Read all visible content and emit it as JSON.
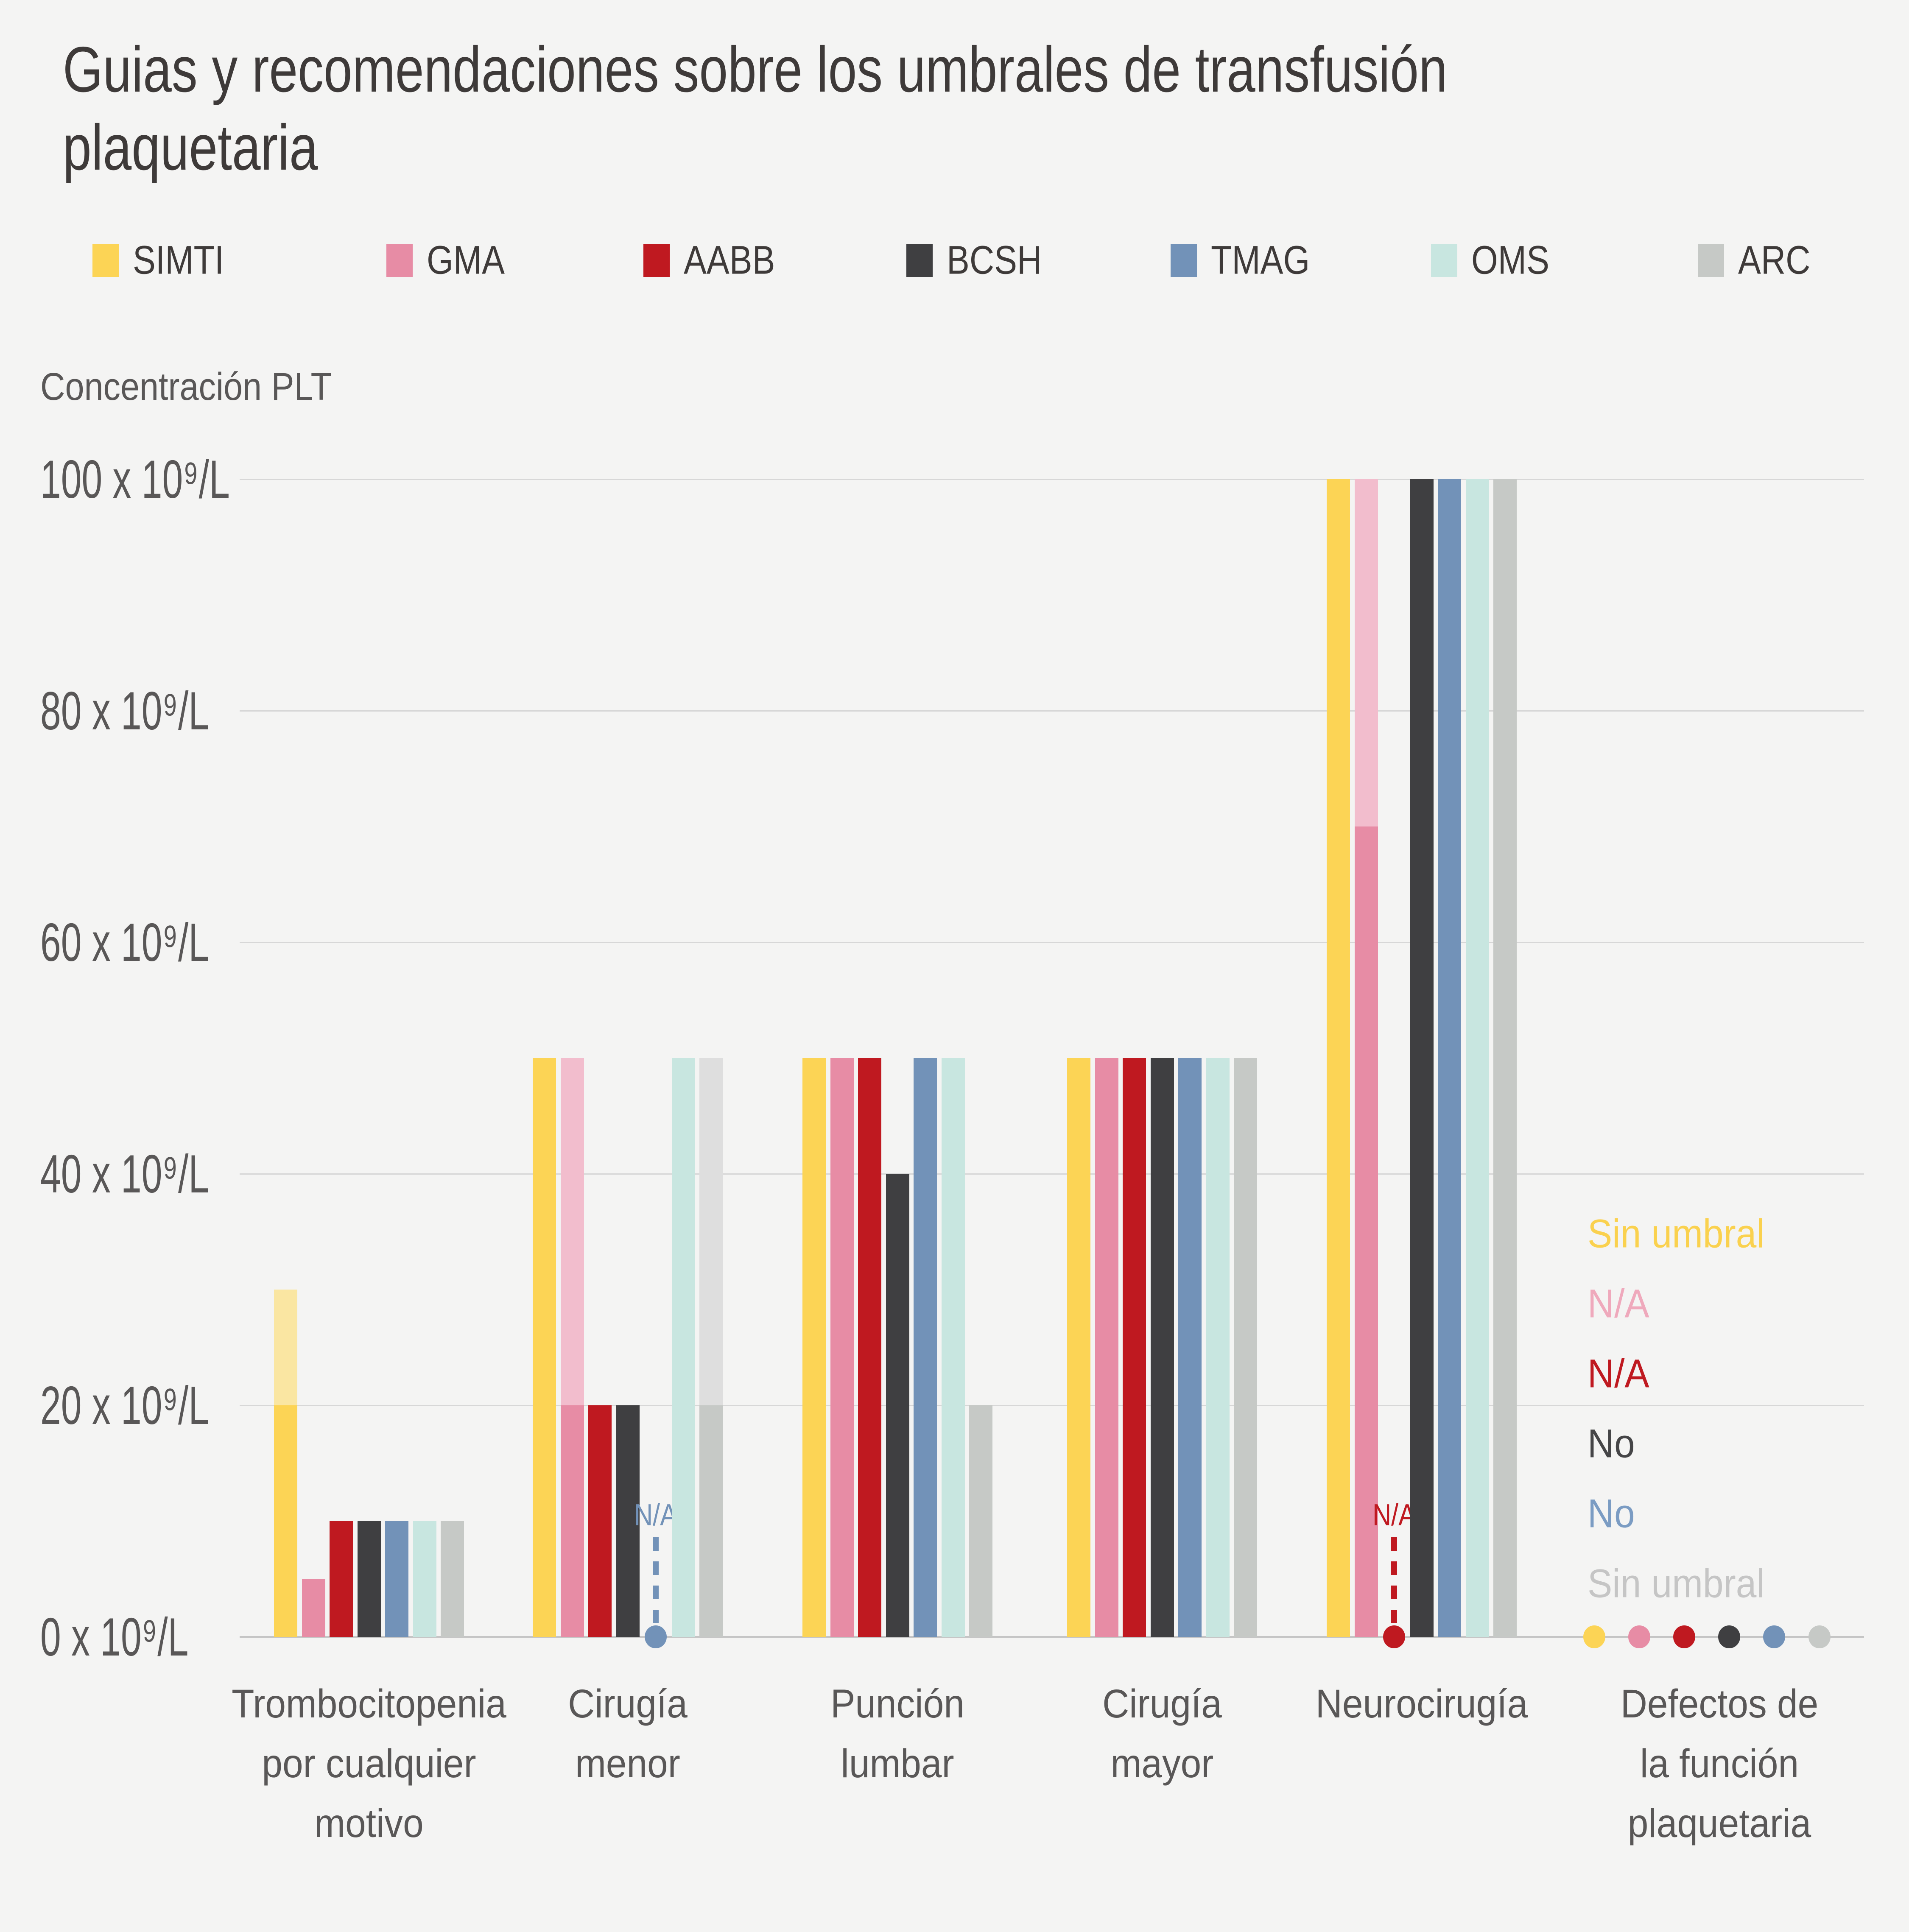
{
  "title": "Guias y recomendaciones sobre los umbrales de transfusión\nplaquetaria",
  "y_axis_title": "Concentración PLT",
  "chart_data": {
    "type": "bar",
    "title": "Guias y recomendaciones sobre los umbrales de transfusión plaquetaria",
    "ylabel": "Concentración PLT",
    "ylim": [
      0,
      100
    ],
    "grid": true,
    "legend_position": "top",
    "yticks": [
      {
        "value": 0,
        "label": "0 x 10⁹/L"
      },
      {
        "value": 20,
        "label": "20 x 10⁹/L"
      },
      {
        "value": 40,
        "label": "40 x 10⁹/L"
      },
      {
        "value": 60,
        "label": "60 x 10⁹/L"
      },
      {
        "value": 80,
        "label": "80 x 10⁹/L"
      },
      {
        "value": 100,
        "label": "100 x 10⁹/L"
      }
    ],
    "categories": [
      "Trombocitopenia\npor cualquier\nmotivo",
      "Cirugía\nmenor",
      "Punción\nlumbar",
      "Cirugía\nmayor",
      "Neurocirugía",
      "Defectos de\nla función\nplaquetaria"
    ],
    "na_label": "N/A",
    "series": [
      {
        "name": "SIMTI",
        "color": "#fcd455",
        "light_color": "#fae6a2",
        "values": [
          {
            "value": 30,
            "light_above": 20
          },
          {
            "value": 50
          },
          {
            "value": 50
          },
          {
            "value": 50
          },
          {
            "value": 100
          },
          {
            "marker": "dot"
          }
        ]
      },
      {
        "name": "GMA",
        "color": "#e78ca5",
        "light_color": "#f2bdcd",
        "values": [
          {
            "value": 5
          },
          {
            "value": 50,
            "light_above": 20
          },
          {
            "value": 50
          },
          {
            "value": 50
          },
          {
            "value": 100,
            "light_above": 70
          },
          {
            "marker": "dot"
          }
        ]
      },
      {
        "name": "AABB",
        "color": "#bf1920",
        "light_color": "#bf1920",
        "values": [
          {
            "value": 10
          },
          {
            "value": 20
          },
          {
            "value": 50
          },
          {
            "value": 50
          },
          {
            "marker": "na"
          },
          {
            "marker": "dot"
          }
        ]
      },
      {
        "name": "BCSH",
        "color": "#3f3f41",
        "light_color": "#3f3f41",
        "values": [
          {
            "value": 10
          },
          {
            "value": 20
          },
          {
            "value": 40
          },
          {
            "value": 50
          },
          {
            "value": 100
          },
          {
            "marker": "dot"
          }
        ]
      },
      {
        "name": "TMAG",
        "color": "#7292b8",
        "light_color": "#7292b8",
        "values": [
          {
            "value": 10
          },
          {
            "marker": "na"
          },
          {
            "value": 50
          },
          {
            "value": 50
          },
          {
            "value": 100
          },
          {
            "marker": "dot"
          }
        ]
      },
      {
        "name": "OMS",
        "color": "#c8e6e0",
        "light_color": "#c8e6e0",
        "values": [
          {
            "value": 10
          },
          {
            "value": 50
          },
          {
            "value": 50
          },
          {
            "value": 50
          },
          {
            "value": 100
          },
          {
            "marker": "none"
          }
        ]
      },
      {
        "name": "ARC",
        "color": "#c6c9c6",
        "light_color": "#dedede",
        "values": [
          {
            "value": 10
          },
          {
            "value": 50,
            "light_above": 20
          },
          {
            "value": 20
          },
          {
            "value": 50
          },
          {
            "value": 100
          },
          {
            "marker": "dot"
          }
        ]
      }
    ],
    "last_category_annotations": [
      {
        "series": "SIMTI",
        "text": "Sin umbral",
        "color": "#fad14e"
      },
      {
        "series": "GMA",
        "text": "N/A",
        "color": "#efa9bc"
      },
      {
        "series": "AABB",
        "text": "N/A",
        "color": "#bf1920"
      },
      {
        "series": "BCSH",
        "text": "No",
        "color": "#454547"
      },
      {
        "series": "TMAG",
        "text": "No",
        "color": "#7b9cc3"
      },
      {
        "series": "ARC",
        "text": "Sin umbral",
        "color": "#c5c5c5"
      }
    ]
  }
}
